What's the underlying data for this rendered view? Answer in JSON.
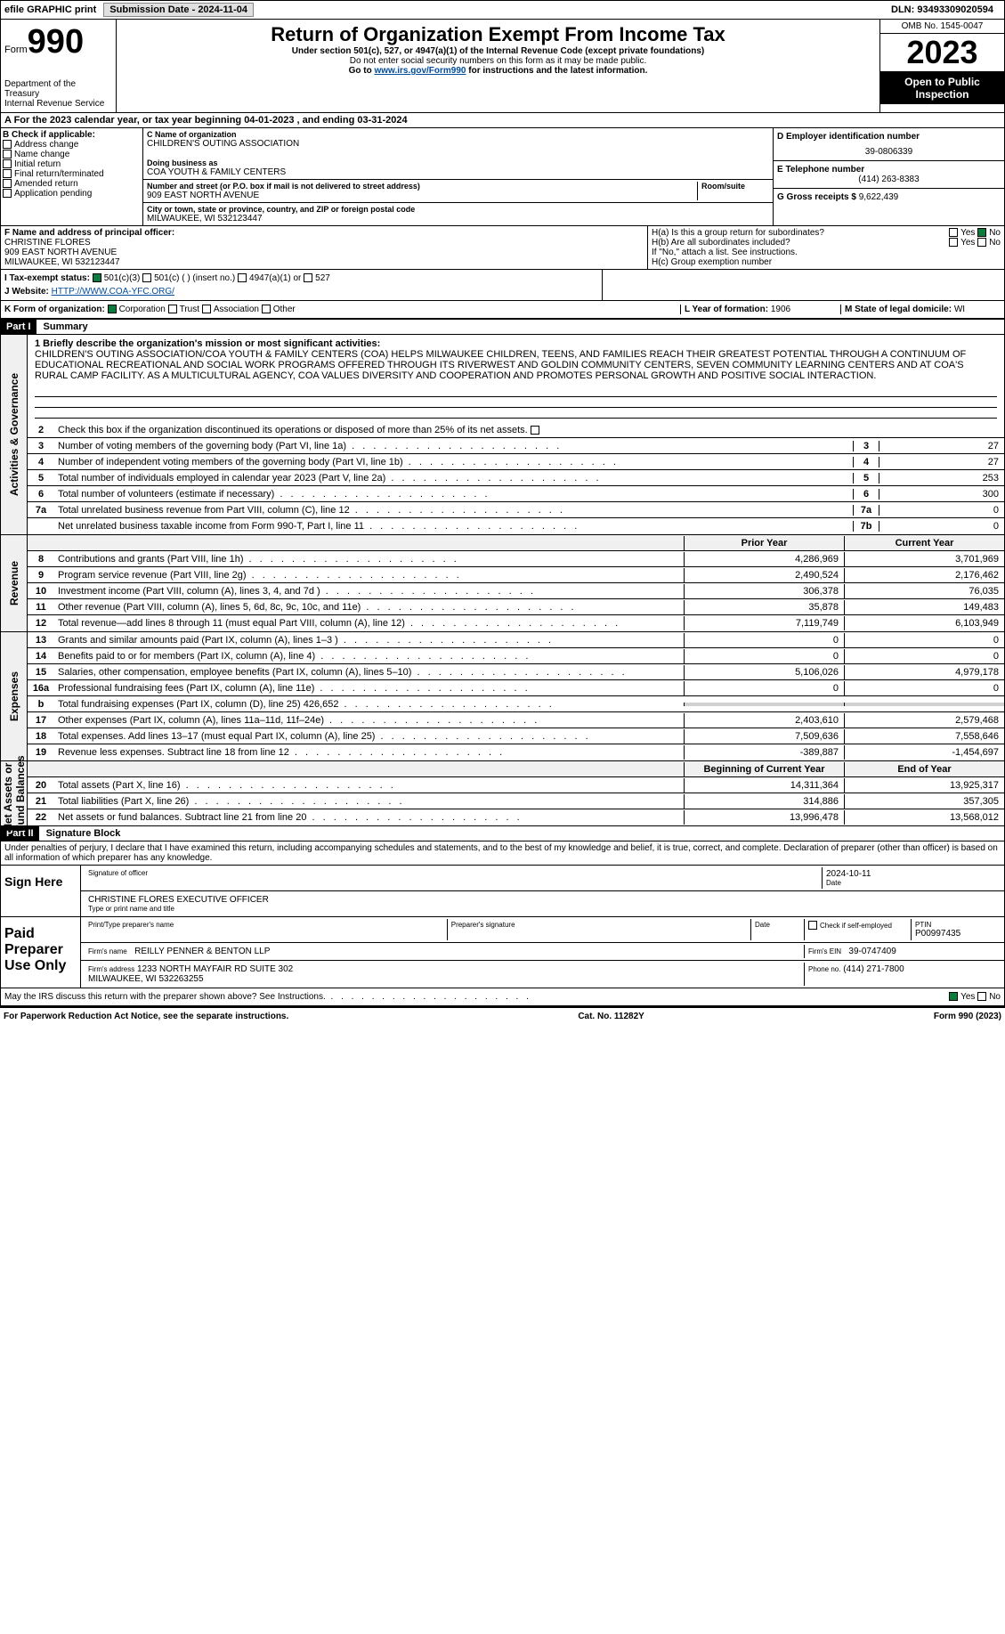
{
  "top": {
    "efile": "efile GRAPHIC print",
    "sub_label": "Submission Date - 2024-11-04",
    "dln": "DLN: 93493309020594"
  },
  "header": {
    "form_label": "Form",
    "form_no": "990",
    "title": "Return of Organization Exempt From Income Tax",
    "sub1": "Under section 501(c), 527, or 4947(a)(1) of the Internal Revenue Code (except private foundations)",
    "sub2": "Do not enter social security numbers on this form as it may be made public.",
    "sub3_pre": "Go to ",
    "sub3_link": "www.irs.gov/Form990",
    "sub3_post": " for instructions and the latest information.",
    "dept": "Department of the Treasury",
    "irs": "Internal Revenue Service",
    "omb": "OMB No. 1545-0047",
    "year": "2023",
    "open": "Open to Public Inspection"
  },
  "a": "A For the 2023 calendar year, or tax year beginning 04-01-2023   , and ending 03-31-2024",
  "b": {
    "label": "B Check if applicable:",
    "items": [
      "Address change",
      "Name change",
      "Initial return",
      "Final return/terminated",
      "Amended return",
      "Application pending"
    ]
  },
  "c": {
    "name_label": "C Name of organization",
    "name": "CHILDREN'S OUTING ASSOCIATION",
    "dba_label": "Doing business as",
    "dba": "COA YOUTH & FAMILY CENTERS",
    "street_label": "Number and street (or P.O. box if mail is not delivered to street address)",
    "room_label": "Room/suite",
    "street": "909 EAST NORTH AVENUE",
    "city_label": "City or town, state or province, country, and ZIP or foreign postal code",
    "city": "MILWAUKEE, WI  532123447"
  },
  "d": {
    "label": "D Employer identification number",
    "val": "39-0806339"
  },
  "e": {
    "label": "E Telephone number",
    "val": "(414) 263-8383"
  },
  "g": {
    "label": "G Gross receipts $",
    "val": "9,622,439"
  },
  "f": {
    "label": "F Name and address of principal officer:",
    "name": "CHRISTINE FLORES",
    "street": "909 EAST NORTH AVENUE",
    "city": "MILWAUKEE, WI  532123447"
  },
  "h": {
    "a": "H(a)  Is this a group return for subordinates?",
    "b": "H(b)  Are all subordinates included?",
    "b_note": "If \"No,\" attach a list. See instructions.",
    "c": "H(c)  Group exemption number"
  },
  "i": {
    "label": "I   Tax-exempt status:",
    "o1": "501(c)(3)",
    "o2": "501(c) (  ) (insert no.)",
    "o3": "4947(a)(1) or",
    "o4": "527"
  },
  "j": {
    "label": "J   Website:",
    "val": "HTTP://WWW.COA-YFC.ORG/"
  },
  "k": {
    "label": "K Form of organization:",
    "o1": "Corporation",
    "o2": "Trust",
    "o3": "Association",
    "o4": "Other"
  },
  "l": {
    "label": "L Year of formation:",
    "val": "1906"
  },
  "m": {
    "label": "M State of legal domicile:",
    "val": "WI"
  },
  "part1": {
    "hdr": "Part I",
    "title": "Summary"
  },
  "mission_label": "1   Briefly describe the organization's mission or most significant activities:",
  "mission": "CHILDREN'S OUTING ASSOCIATION/COA YOUTH & FAMILY CENTERS (COA) HELPS MILWAUKEE CHILDREN, TEENS, AND FAMILIES REACH THEIR GREATEST POTENTIAL THROUGH A CONTINUUM OF EDUCATIONAL RECREATIONAL AND SOCIAL WORK PROGRAMS OFFERED THROUGH ITS RIVERWEST AND GOLDIN COMMUNITY CENTERS, SEVEN COMMUNITY LEARNING CENTERS AND AT COA'S RURAL CAMP FACILITY. AS A MULTICULTURAL AGENCY, COA VALUES DIVERSITY AND COOPERATION AND PROMOTES PERSONAL GROWTH AND POSITIVE SOCIAL INTERACTION.",
  "line2": "Check this box       if the organization discontinued its operations or disposed of more than 25% of its net assets.",
  "gov": [
    {
      "n": "3",
      "d": "Number of voting members of the governing body (Part VI, line 1a)",
      "l": "3",
      "v": "27"
    },
    {
      "n": "4",
      "d": "Number of independent voting members of the governing body (Part VI, line 1b)",
      "l": "4",
      "v": "27"
    },
    {
      "n": "5",
      "d": "Total number of individuals employed in calendar year 2023 (Part V, line 2a)",
      "l": "5",
      "v": "253"
    },
    {
      "n": "6",
      "d": "Total number of volunteers (estimate if necessary)",
      "l": "6",
      "v": "300"
    },
    {
      "n": "7a",
      "d": "Total unrelated business revenue from Part VIII, column (C), line 12",
      "l": "7a",
      "v": "0"
    },
    {
      "n": "",
      "d": "Net unrelated business taxable income from Form 990-T, Part I, line 11",
      "l": "7b",
      "v": "0"
    }
  ],
  "col_hdr": {
    "prior": "Prior Year",
    "curr": "Current Year"
  },
  "revenue": [
    {
      "n": "8",
      "d": "Contributions and grants (Part VIII, line 1h)",
      "p": "4,286,969",
      "c": "3,701,969"
    },
    {
      "n": "9",
      "d": "Program service revenue (Part VIII, line 2g)",
      "p": "2,490,524",
      "c": "2,176,462"
    },
    {
      "n": "10",
      "d": "Investment income (Part VIII, column (A), lines 3, 4, and 7d )",
      "p": "306,378",
      "c": "76,035"
    },
    {
      "n": "11",
      "d": "Other revenue (Part VIII, column (A), lines 5, 6d, 8c, 9c, 10c, and 11e)",
      "p": "35,878",
      "c": "149,483"
    },
    {
      "n": "12",
      "d": "Total revenue—add lines 8 through 11 (must equal Part VIII, column (A), line 12)",
      "p": "7,119,749",
      "c": "6,103,949"
    }
  ],
  "expenses": [
    {
      "n": "13",
      "d": "Grants and similar amounts paid (Part IX, column (A), lines 1–3 )",
      "p": "0",
      "c": "0"
    },
    {
      "n": "14",
      "d": "Benefits paid to or for members (Part IX, column (A), line 4)",
      "p": "0",
      "c": "0"
    },
    {
      "n": "15",
      "d": "Salaries, other compensation, employee benefits (Part IX, column (A), lines 5–10)",
      "p": "5,106,026",
      "c": "4,979,178"
    },
    {
      "n": "16a",
      "d": "Professional fundraising fees (Part IX, column (A), line 11e)",
      "p": "0",
      "c": "0"
    },
    {
      "n": "b",
      "d": "Total fundraising expenses (Part IX, column (D), line 25) 426,652",
      "p": "",
      "c": "",
      "gray": true
    },
    {
      "n": "17",
      "d": "Other expenses (Part IX, column (A), lines 11a–11d, 11f–24e)",
      "p": "2,403,610",
      "c": "2,579,468"
    },
    {
      "n": "18",
      "d": "Total expenses. Add lines 13–17 (must equal Part IX, column (A), line 25)",
      "p": "7,509,636",
      "c": "7,558,646"
    },
    {
      "n": "19",
      "d": "Revenue less expenses. Subtract line 18 from line 12",
      "p": "-389,887",
      "c": "-1,454,697"
    }
  ],
  "net_hdr": {
    "prior": "Beginning of Current Year",
    "curr": "End of Year"
  },
  "netassets": [
    {
      "n": "20",
      "d": "Total assets (Part X, line 16)",
      "p": "14,311,364",
      "c": "13,925,317"
    },
    {
      "n": "21",
      "d": "Total liabilities (Part X, line 26)",
      "p": "314,886",
      "c": "357,305"
    },
    {
      "n": "22",
      "d": "Net assets or fund balances. Subtract line 21 from line 20",
      "p": "13,996,478",
      "c": "13,568,012"
    }
  ],
  "part2": {
    "hdr": "Part II",
    "title": "Signature Block"
  },
  "penalties": "Under penalties of perjury, I declare that I have examined this return, including accompanying schedules and statements, and to the best of my knowledge and belief, it is true, correct, and complete. Declaration of preparer (other than officer) is based on all information of which preparer has any knowledge.",
  "sign": {
    "here": "Sign Here",
    "sig_label": "Signature of officer",
    "date_label": "Date",
    "date": "2024-10-11",
    "officer": "CHRISTINE FLORES  EXECUTIVE OFFICER",
    "type_label": "Type or print name and title"
  },
  "paid": {
    "label": "Paid Preparer Use Only",
    "name_label": "Print/Type preparer's name",
    "sig_label": "Preparer's signature",
    "date_label": "Date",
    "self": "Check        if self-employed",
    "ptin_label": "PTIN",
    "ptin": "P00997435",
    "firm_name_label": "Firm's name",
    "firm_name": "REILLY PENNER & BENTON LLP",
    "ein_label": "Firm's EIN",
    "ein": "39-0747409",
    "addr_label": "Firm's address",
    "addr": "1233 NORTH MAYFAIR RD SUITE 302",
    "addr2": "MILWAUKEE, WI  532263255",
    "phone_label": "Phone no.",
    "phone": "(414) 271-7800"
  },
  "discuss": "May the IRS discuss this return with the preparer shown above? See Instructions.",
  "footer": {
    "left": "For Paperwork Reduction Act Notice, see the separate instructions.",
    "center": "Cat. No. 11282Y",
    "right": "Form 990 (2023)"
  },
  "yes": "Yes",
  "no": "No"
}
